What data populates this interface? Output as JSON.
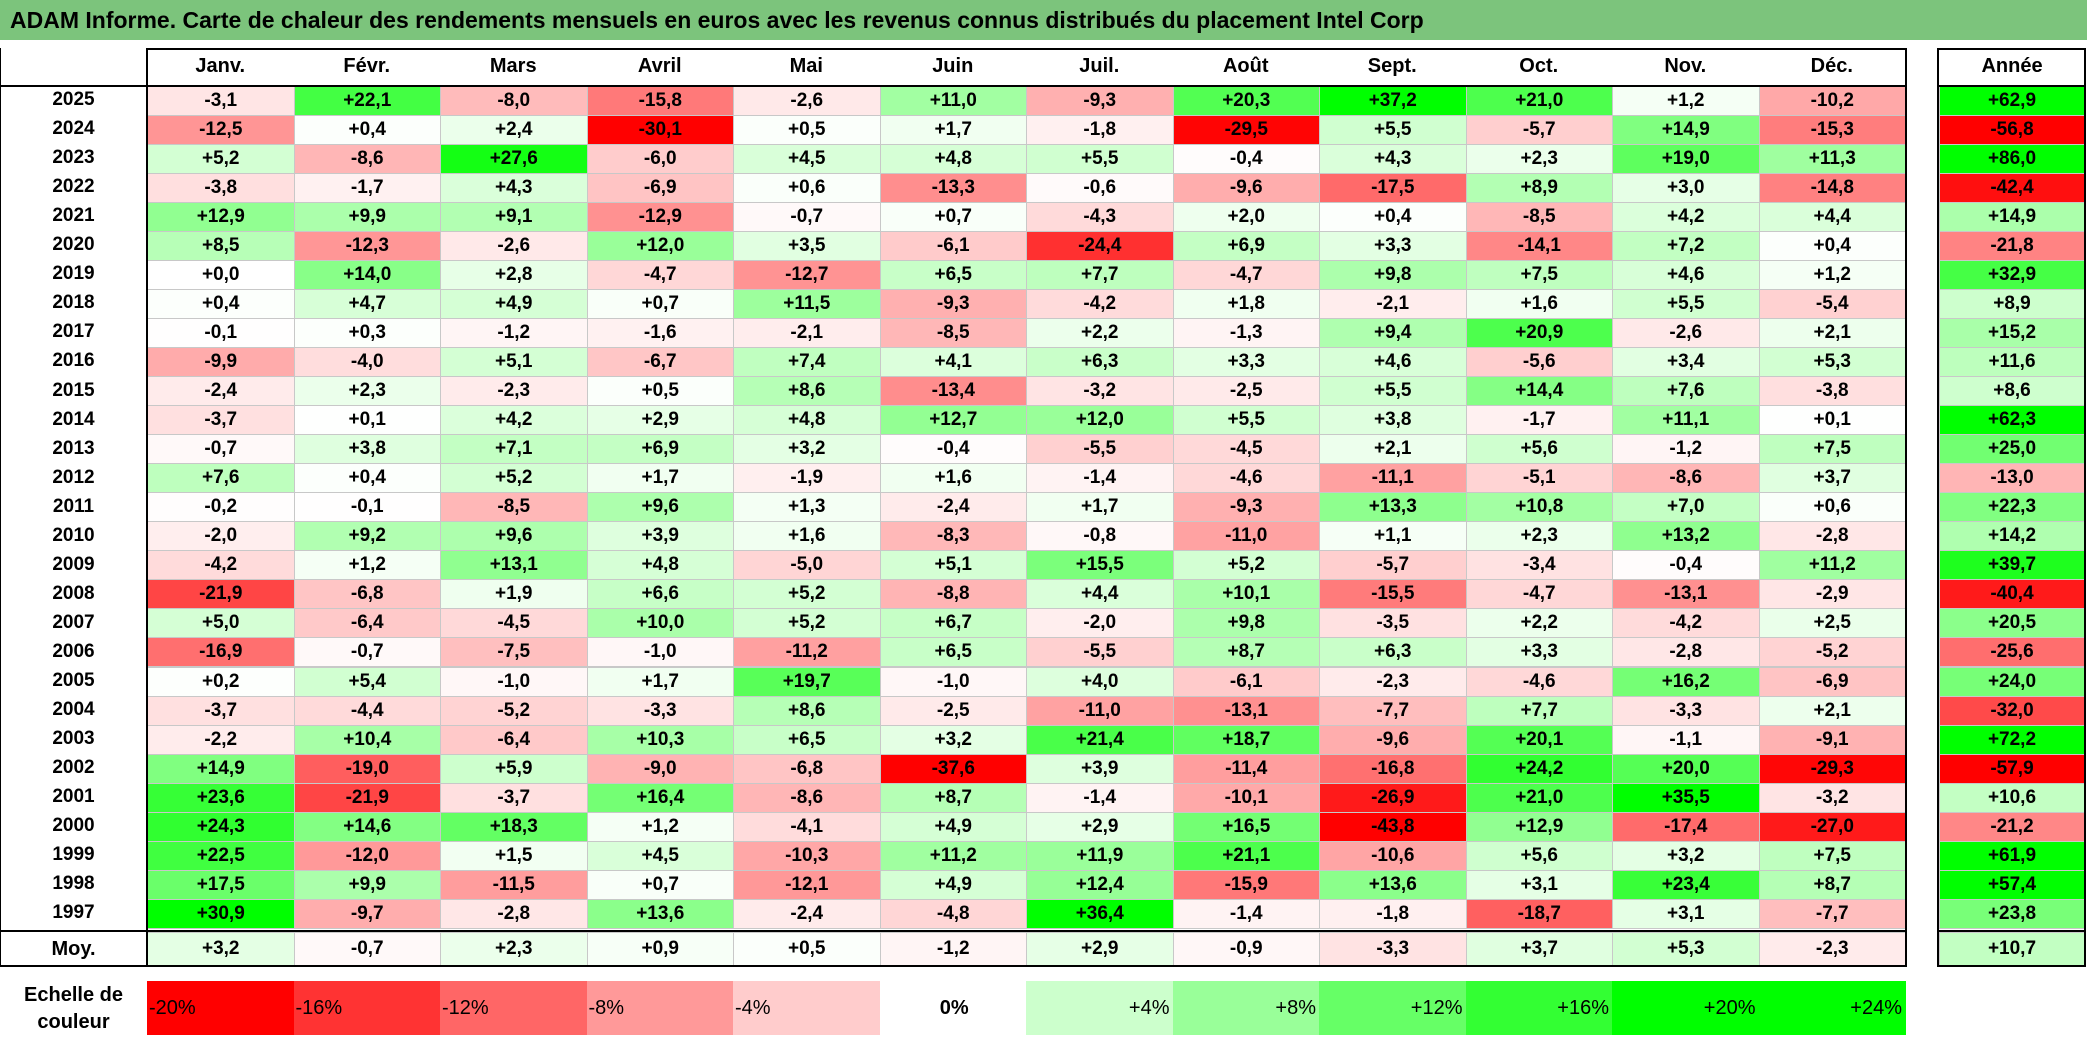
{
  "title": "ADAM Informe. Carte de chaleur des rendements mensuels en euros avec les revenus connus distribués du placement Intel Corp",
  "colors": {
    "title_bg": "#7cc47c",
    "max_red": "#ff0000",
    "max_green": "#00ff00",
    "neutral": "#ffffff"
  },
  "chart_data": {
    "type": "heatmap",
    "title": "ADAM Informe. Carte de chaleur des rendements mensuels en euros avec les revenus connus distribués du placement Intel Corp",
    "columns": [
      "Janv.",
      "Févr.",
      "Mars",
      "Avril",
      "Mai",
      "Juin",
      "Juil.",
      "Août",
      "Sept.",
      "Oct.",
      "Nov.",
      "Déc."
    ],
    "annual_header": "Année",
    "rows": [
      {
        "year": "2025",
        "values": [
          "-3,1",
          "+22,1",
          "-8,0",
          "-15,8",
          "-2,6",
          "+11,0",
          "-9,3",
          "+20,3",
          "+37,2",
          "+21,0",
          "+1,2",
          "-10,2"
        ],
        "annual": "+62,9"
      },
      {
        "year": "2024",
        "values": [
          "-12,5",
          "+0,4",
          "+2,4",
          "-30,1",
          "+0,5",
          "+1,7",
          "-1,8",
          "-29,5",
          "+5,5",
          "-5,7",
          "+14,9",
          "-15,3"
        ],
        "annual": "-56,8"
      },
      {
        "year": "2023",
        "values": [
          "+5,2",
          "-8,6",
          "+27,6",
          "-6,0",
          "+4,5",
          "+4,8",
          "+5,5",
          "-0,4",
          "+4,3",
          "+2,3",
          "+19,0",
          "+11,3"
        ],
        "annual": "+86,0"
      },
      {
        "year": "2022",
        "values": [
          "-3,8",
          "-1,7",
          "+4,3",
          "-6,9",
          "+0,6",
          "-13,3",
          "-0,6",
          "-9,6",
          "-17,5",
          "+8,9",
          "+3,0",
          "-14,8"
        ],
        "annual": "-42,4"
      },
      {
        "year": "2021",
        "values": [
          "+12,9",
          "+9,9",
          "+9,1",
          "-12,9",
          "-0,7",
          "+0,7",
          "-4,3",
          "+2,0",
          "+0,4",
          "-8,5",
          "+4,2",
          "+4,4"
        ],
        "annual": "+14,9"
      },
      {
        "year": "2020",
        "values": [
          "+8,5",
          "-12,3",
          "-2,6",
          "+12,0",
          "+3,5",
          "-6,1",
          "-24,4",
          "+6,9",
          "+3,3",
          "-14,1",
          "+7,2",
          "+0,4"
        ],
        "annual": "-21,8"
      },
      {
        "year": "2019",
        "values": [
          "+0,0",
          "+14,0",
          "+2,8",
          "-4,7",
          "-12,7",
          "+6,5",
          "+7,7",
          "-4,7",
          "+9,8",
          "+7,5",
          "+4,6",
          "+1,2"
        ],
        "annual": "+32,9"
      },
      {
        "year": "2018",
        "values": [
          "+0,4",
          "+4,7",
          "+4,9",
          "+0,7",
          "+11,5",
          "-9,3",
          "-4,2",
          "+1,8",
          "-2,1",
          "+1,6",
          "+5,5",
          "-5,4"
        ],
        "annual": "+8,9"
      },
      {
        "year": "2017",
        "values": [
          "-0,1",
          "+0,3",
          "-1,2",
          "-1,6",
          "-2,1",
          "-8,5",
          "+2,2",
          "-1,3",
          "+9,4",
          "+20,9",
          "-2,6",
          "+2,1"
        ],
        "annual": "+15,2"
      },
      {
        "year": "2016",
        "values": [
          "-9,9",
          "-4,0",
          "+5,1",
          "-6,7",
          "+7,4",
          "+4,1",
          "+6,3",
          "+3,3",
          "+4,6",
          "-5,6",
          "+3,4",
          "+5,3"
        ],
        "annual": "+11,6"
      },
      {
        "year": "2015",
        "values": [
          "-2,4",
          "+2,3",
          "-2,3",
          "+0,5",
          "+8,6",
          "-13,4",
          "-3,2",
          "-2,5",
          "+5,5",
          "+14,4",
          "+7,6",
          "-3,8"
        ],
        "annual": "+8,6"
      },
      {
        "year": "2014",
        "values": [
          "-3,7",
          "+0,1",
          "+4,2",
          "+2,9",
          "+4,8",
          "+12,7",
          "+12,0",
          "+5,5",
          "+3,8",
          "-1,7",
          "+11,1",
          "+0,1"
        ],
        "annual": "+62,3"
      },
      {
        "year": "2013",
        "values": [
          "-0,7",
          "+3,8",
          "+7,1",
          "+6,9",
          "+3,2",
          "-0,4",
          "-5,5",
          "-4,5",
          "+2,1",
          "+5,6",
          "-1,2",
          "+7,5"
        ],
        "annual": "+25,0"
      },
      {
        "year": "2012",
        "values": [
          "+7,6",
          "+0,4",
          "+5,2",
          "+1,7",
          "-1,9",
          "+1,6",
          "-1,4",
          "-4,6",
          "-11,1",
          "-5,1",
          "-8,6",
          "+3,7"
        ],
        "annual": "-13,0"
      },
      {
        "year": "2011",
        "values": [
          "-0,2",
          "-0,1",
          "-8,5",
          "+9,6",
          "+1,3",
          "-2,4",
          "+1,7",
          "-9,3",
          "+13,3",
          "+10,8",
          "+7,0",
          "+0,6"
        ],
        "annual": "+22,3"
      },
      {
        "year": "2010",
        "values": [
          "-2,0",
          "+9,2",
          "+9,6",
          "+3,9",
          "+1,6",
          "-8,3",
          "-0,8",
          "-11,0",
          "+1,1",
          "+2,3",
          "+13,2",
          "-2,8"
        ],
        "annual": "+14,2"
      },
      {
        "year": "2009",
        "values": [
          "-4,2",
          "+1,2",
          "+13,1",
          "+4,8",
          "-5,0",
          "+5,1",
          "+15,5",
          "+5,2",
          "-5,7",
          "-3,4",
          "-0,4",
          "+11,2"
        ],
        "annual": "+39,7"
      },
      {
        "year": "2008",
        "values": [
          "-21,9",
          "-6,8",
          "+1,9",
          "+6,6",
          "+5,2",
          "-8,8",
          "+4,4",
          "+10,1",
          "-15,5",
          "-4,7",
          "-13,1",
          "-2,9"
        ],
        "annual": "-40,4"
      },
      {
        "year": "2007",
        "values": [
          "+5,0",
          "-6,4",
          "-4,5",
          "+10,0",
          "+5,2",
          "+6,7",
          "-2,0",
          "+9,8",
          "-3,5",
          "+2,2",
          "-4,2",
          "+2,5"
        ],
        "annual": "+20,5"
      },
      {
        "year": "2006",
        "values": [
          "-16,9",
          "-0,7",
          "-7,5",
          "-1,0",
          "-11,2",
          "+6,5",
          "-5,5",
          "+8,7",
          "+6,3",
          "+3,3",
          "-2,8",
          "-5,2"
        ],
        "annual": "-25,6"
      },
      {
        "year": "2005",
        "values": [
          "+0,2",
          "+5,4",
          "-1,0",
          "+1,7",
          "+19,7",
          "-1,0",
          "+4,0",
          "-6,1",
          "-2,3",
          "-4,6",
          "+16,2",
          "-6,9"
        ],
        "annual": "+24,0"
      },
      {
        "year": "2004",
        "values": [
          "-3,7",
          "-4,4",
          "-5,2",
          "-3,3",
          "+8,6",
          "-2,5",
          "-11,0",
          "-13,1",
          "-7,7",
          "+7,7",
          "-3,3",
          "+2,1"
        ],
        "annual": "-32,0"
      },
      {
        "year": "2003",
        "values": [
          "-2,2",
          "+10,4",
          "-6,4",
          "+10,3",
          "+6,5",
          "+3,2",
          "+21,4",
          "+18,7",
          "-9,6",
          "+20,1",
          "-1,1",
          "-9,1"
        ],
        "annual": "+72,2"
      },
      {
        "year": "2002",
        "values": [
          "+14,9",
          "-19,0",
          "+5,9",
          "-9,0",
          "-6,8",
          "-37,6",
          "+3,9",
          "-11,4",
          "-16,8",
          "+24,2",
          "+20,0",
          "-29,3"
        ],
        "annual": "-57,9"
      },
      {
        "year": "2001",
        "values": [
          "+23,6",
          "-21,9",
          "-3,7",
          "+16,4",
          "-8,6",
          "+8,7",
          "-1,4",
          "-10,1",
          "-26,9",
          "+21,0",
          "+35,5",
          "-3,2"
        ],
        "annual": "+10,6"
      },
      {
        "year": "2000",
        "values": [
          "+24,3",
          "+14,6",
          "+18,3",
          "+1,2",
          "-4,1",
          "+4,9",
          "+2,9",
          "+16,5",
          "-43,8",
          "+12,9",
          "-17,4",
          "-27,0"
        ],
        "annual": "-21,2"
      },
      {
        "year": "1999",
        "values": [
          "+22,5",
          "-12,0",
          "+1,5",
          "+4,5",
          "-10,3",
          "+11,2",
          "+11,9",
          "+21,1",
          "-10,6",
          "+5,6",
          "+3,2",
          "+7,5"
        ],
        "annual": "+61,9"
      },
      {
        "year": "1998",
        "values": [
          "+17,5",
          "+9,9",
          "-11,5",
          "+0,7",
          "-12,1",
          "+4,9",
          "+12,4",
          "-15,9",
          "+13,6",
          "+3,1",
          "+23,4",
          "+8,7"
        ],
        "annual": "+57,4"
      },
      {
        "year": "1997",
        "values": [
          "+30,9",
          "-9,7",
          "-2,8",
          "+13,6",
          "-2,4",
          "-4,8",
          "+36,4",
          "-1,4",
          "-1,8",
          "-18,7",
          "+3,1",
          "-7,7"
        ],
        "annual": "+23,8"
      }
    ],
    "average": {
      "label": "Moy.",
      "values": [
        "+3,2",
        "-0,7",
        "+2,3",
        "+0,9",
        "+0,5",
        "-1,2",
        "+2,9",
        "-0,9",
        "-3,3",
        "+3,7",
        "+5,3",
        "-2,3"
      ],
      "annual": "+10,7"
    },
    "color_scale": {
      "label": "Echelle de couleur",
      "stops": [
        "-20%",
        "-16%",
        "-12%",
        "-8%",
        "-4%",
        "0%",
        "+4%",
        "+8%",
        "+12%",
        "+16%",
        "+20%",
        "+24%"
      ],
      "stop_values": [
        -20,
        -16,
        -12,
        -8,
        -4,
        0,
        4,
        8,
        12,
        16,
        20,
        24
      ]
    }
  }
}
